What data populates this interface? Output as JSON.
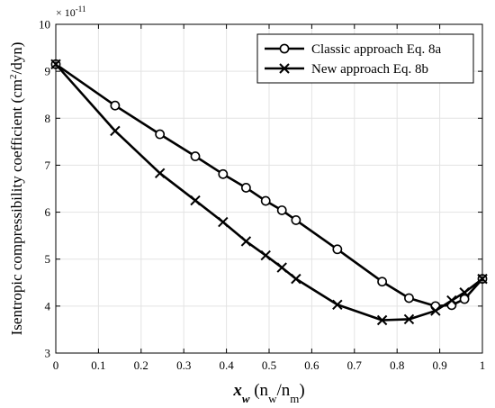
{
  "chart_data": {
    "type": "line",
    "ylabel_text": "Isentropic compressibility coefficient (cm",
    "ylabel_sup": "2",
    "ylabel_tail": "/dyn)",
    "xlabel_var": "x",
    "xlabel_sub": "w",
    "xlabel_paren_open": " (n",
    "xlabel_sub2": "w",
    "xlabel_mid": "/n",
    "xlabel_sub3": "m",
    "xlabel_paren_close": ")",
    "exponent_label": "× 10",
    "exponent_power": "-11",
    "xlim": [
      0,
      1
    ],
    "ylim": [
      3,
      10
    ],
    "x_ticks": [
      "0",
      "0.1",
      "0.2",
      "0.3",
      "0.4",
      "0.5",
      "0.6",
      "0.7",
      "0.8",
      "0.9",
      "1"
    ],
    "y_ticks": [
      "3",
      "4",
      "5",
      "6",
      "7",
      "8",
      "9",
      "10"
    ],
    "grid": true,
    "legend_position": "top-right",
    "series": [
      {
        "name": "Classic approach Eq. 8a",
        "marker": "circle",
        "x": [
          0,
          0.139,
          0.244,
          0.327,
          0.392,
          0.446,
          0.492,
          0.53,
          0.563,
          0.66,
          0.765,
          0.828,
          0.89,
          0.928,
          0.958,
          1
        ],
        "y": [
          9.15,
          8.27,
          7.66,
          7.19,
          6.81,
          6.52,
          6.24,
          6.04,
          5.83,
          5.21,
          4.52,
          4.17,
          4.0,
          4.02,
          4.15,
          4.58
        ]
      },
      {
        "name": "New approach Eq. 8b",
        "marker": "x",
        "x": [
          0,
          0.139,
          0.244,
          0.327,
          0.392,
          0.446,
          0.492,
          0.53,
          0.563,
          0.66,
          0.765,
          0.828,
          0.89,
          0.928,
          0.958,
          1
        ],
        "y": [
          9.15,
          7.73,
          6.83,
          6.25,
          5.79,
          5.38,
          5.08,
          4.82,
          4.58,
          4.03,
          3.7,
          3.72,
          3.9,
          4.12,
          4.29,
          4.58
        ]
      }
    ]
  }
}
